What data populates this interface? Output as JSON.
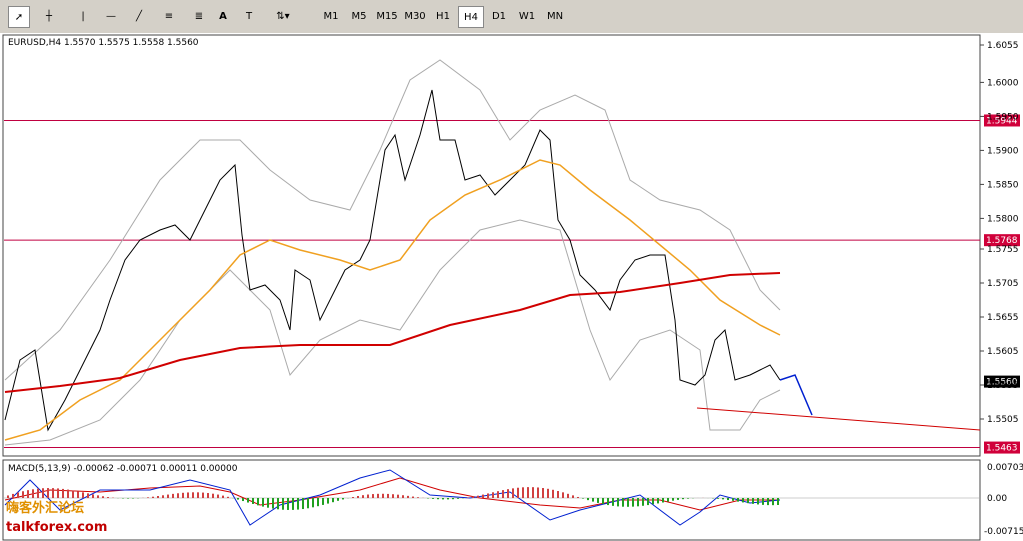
{
  "toolbar": {
    "tools": [
      "A"
    ],
    "timeframes": [
      "M1",
      "M5",
      "M15",
      "M30",
      "H1",
      "H4",
      "D1",
      "W1",
      "MN"
    ],
    "active_timeframe": "H4"
  },
  "chart": {
    "header": "EURUSD,H4  1.5570 1.5575 1.5558 1.5560",
    "price_ticks": [
      {
        "value": 1.6055,
        "label": "1.6055"
      },
      {
        "value": 1.6,
        "label": "1.6000"
      },
      {
        "value": 1.595,
        "label": "1.5950"
      },
      {
        "value": 1.59,
        "label": "1.5900"
      },
      {
        "value": 1.585,
        "label": "1.5850"
      },
      {
        "value": 1.58,
        "label": "1.5800"
      },
      {
        "value": 1.5755,
        "label": "1.5755"
      },
      {
        "value": 1.5705,
        "label": "1.5705"
      },
      {
        "value": 1.5655,
        "label": "1.5655"
      },
      {
        "value": 1.5605,
        "label": "1.5605"
      },
      {
        "value": 1.5555,
        "label": "1.5555"
      },
      {
        "value": 1.5505,
        "label": "1.5505"
      }
    ],
    "levels": [
      {
        "value": 1.5944,
        "label": "1.5944"
      },
      {
        "value": 1.5768,
        "label": "1.5768"
      },
      {
        "value": 1.5463,
        "label": "1.5463"
      }
    ],
    "current_price": {
      "value": 1.556,
      "label": "1.5560"
    }
  },
  "macd": {
    "header": "MACD(5,13,9) -0.00062 -0.00071 0.00011 0.00000",
    "axis_labels": [
      "0.00703",
      "0.00",
      "-0.00715"
    ]
  },
  "watermark": {
    "title": "嗨客外汇论坛",
    "site": "talkforex.com"
  }
}
